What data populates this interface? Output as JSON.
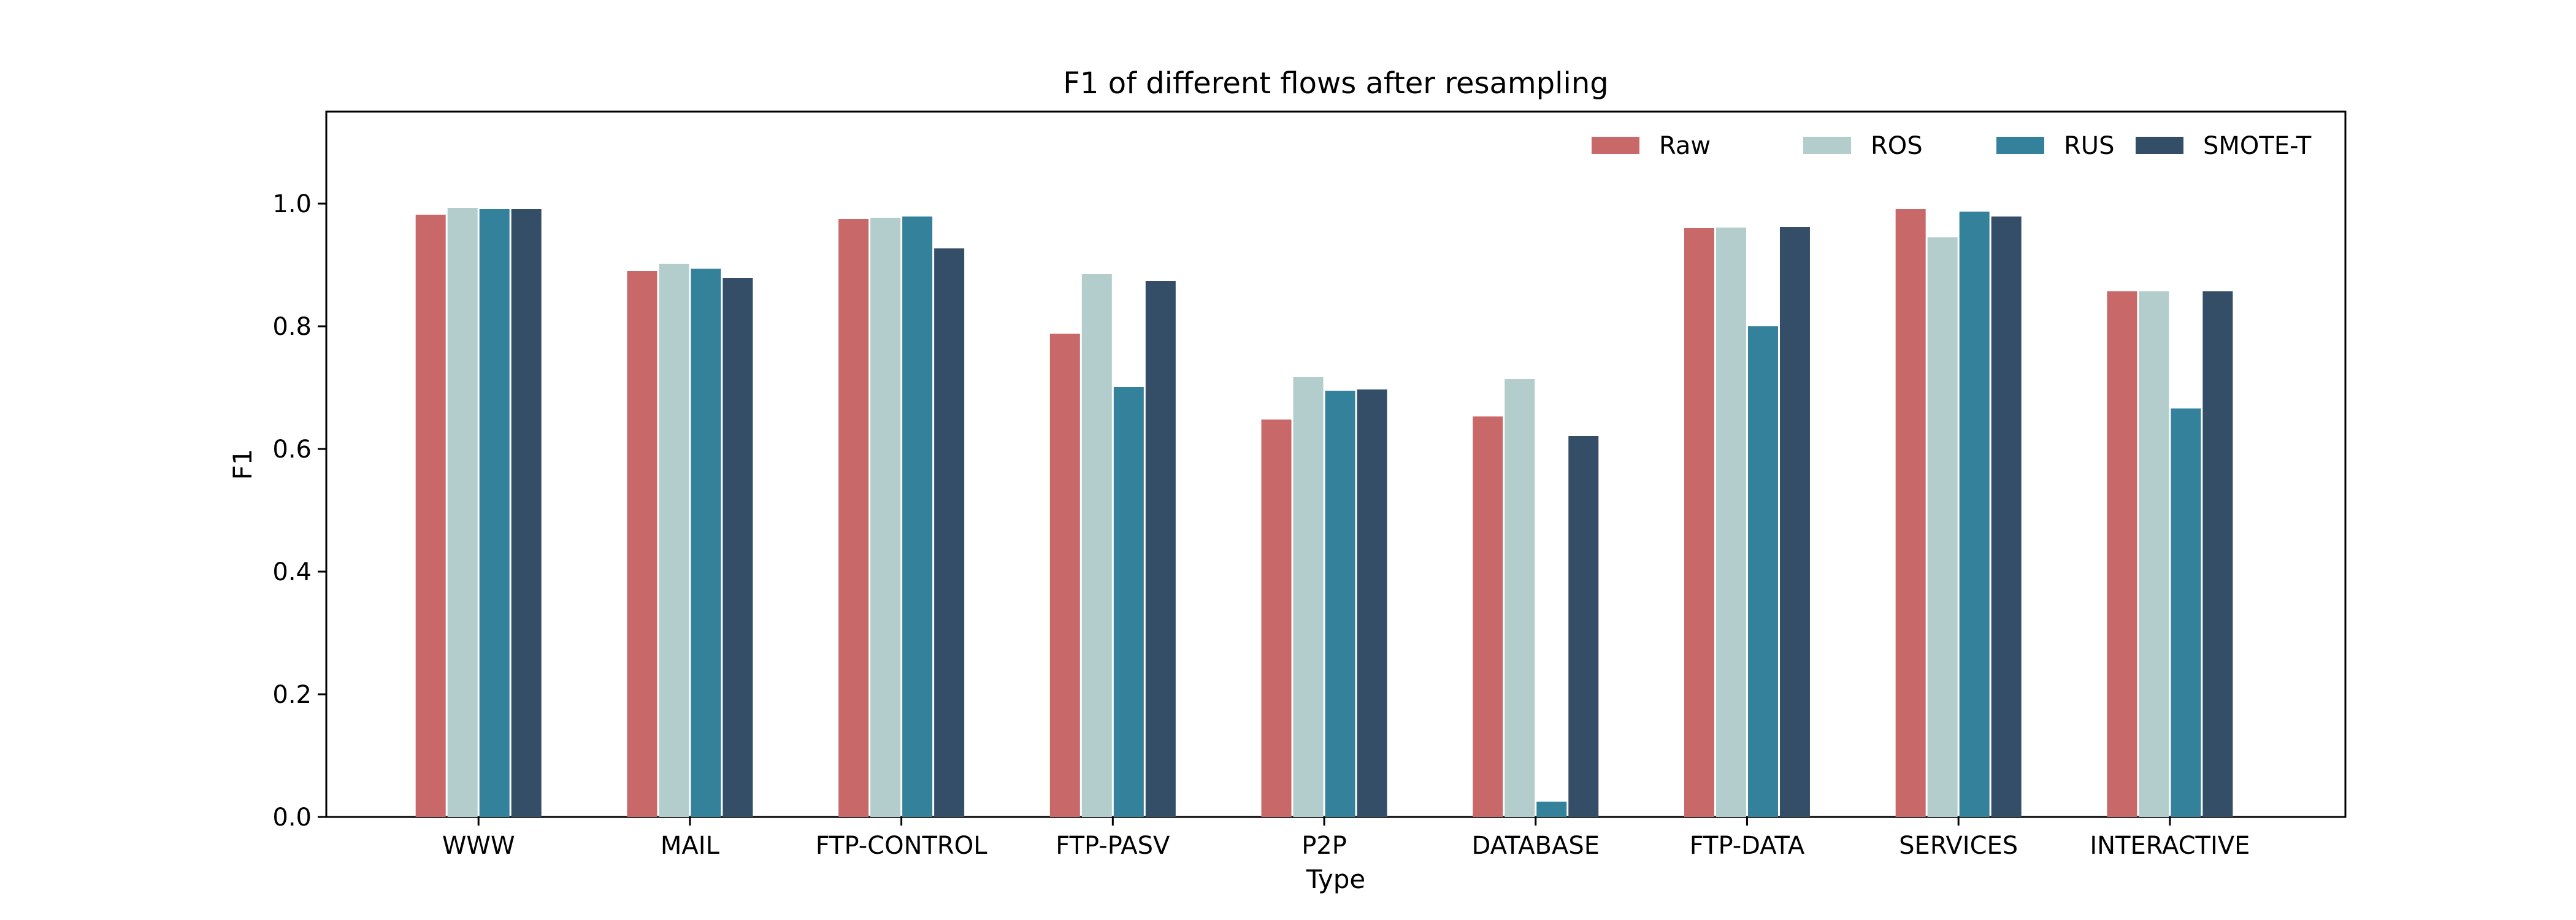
{
  "chart_data": {
    "type": "bar",
    "title": "F1 of different flows after resampling",
    "xlabel": "Type",
    "ylabel": "F1",
    "ylim": [
      0,
      1.15
    ],
    "yticks": [
      "0.0",
      "0.2",
      "0.4",
      "0.6",
      "0.8",
      "1.0"
    ],
    "grid": false,
    "legend_position": "top-right",
    "categories": [
      "WWW",
      "MAIL",
      "FTP-CONTROL",
      "FTP-PASV",
      "P2P",
      "DATABASE",
      "FTP-DATA",
      "SERVICES",
      "INTERACTIVE"
    ],
    "series": [
      {
        "name": "Raw",
        "color": "#c96868",
        "values": [
          0.982,
          0.89,
          0.975,
          0.788,
          0.648,
          0.653,
          0.96,
          0.991,
          0.857
        ]
      },
      {
        "name": "ROS",
        "color": "#b3cdcc",
        "values": [
          0.993,
          0.902,
          0.977,
          0.885,
          0.717,
          0.714,
          0.961,
          0.945,
          0.857
        ]
      },
      {
        "name": "RUS",
        "color": "#33819b",
        "values": [
          0.991,
          0.894,
          0.979,
          0.701,
          0.695,
          0.025,
          0.8,
          0.987,
          0.666
        ]
      },
      {
        "name": "SMOTE-T",
        "color": "#344e68",
        "values": [
          0.991,
          0.879,
          0.927,
          0.874,
          0.697,
          0.621,
          0.962,
          0.979,
          0.857
        ]
      }
    ]
  }
}
